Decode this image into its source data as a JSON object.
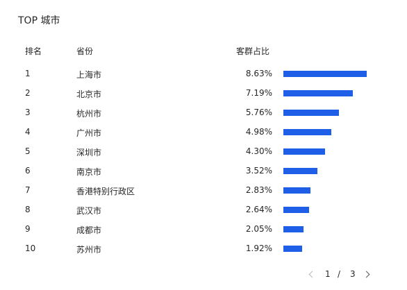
{
  "title": "TOP 城市",
  "columns": {
    "rank": "排名",
    "province": "省份",
    "share": "客群占比"
  },
  "colors": {
    "bar": "#1f5ee6",
    "disabled": "#b8b8b8"
  },
  "rows": [
    {
      "rank": "1",
      "city": "上海市",
      "percent": "8.63%",
      "value": 8.63
    },
    {
      "rank": "2",
      "city": "北京市",
      "percent": "7.19%",
      "value": 7.19
    },
    {
      "rank": "3",
      "city": "杭州市",
      "percent": "5.76%",
      "value": 5.76
    },
    {
      "rank": "4",
      "city": "广州市",
      "percent": "4.98%",
      "value": 4.98
    },
    {
      "rank": "5",
      "city": "深圳市",
      "percent": "4.30%",
      "value": 4.3
    },
    {
      "rank": "6",
      "city": "南京市",
      "percent": "3.52%",
      "value": 3.52
    },
    {
      "rank": "7",
      "city": "香港特别行政区",
      "percent": "2.83%",
      "value": 2.83
    },
    {
      "rank": "8",
      "city": "武汉市",
      "percent": "2.64%",
      "value": 2.64
    },
    {
      "rank": "9",
      "city": "成都市",
      "percent": "2.05%",
      "value": 2.05
    },
    {
      "rank": "10",
      "city": "苏州市",
      "percent": "1.92%",
      "value": 1.92
    }
  ],
  "pagination": {
    "current": "1",
    "separator": "/",
    "total": "3",
    "prev_icon": "chevron-left-icon",
    "next_icon": "chevron-right-icon"
  }
}
